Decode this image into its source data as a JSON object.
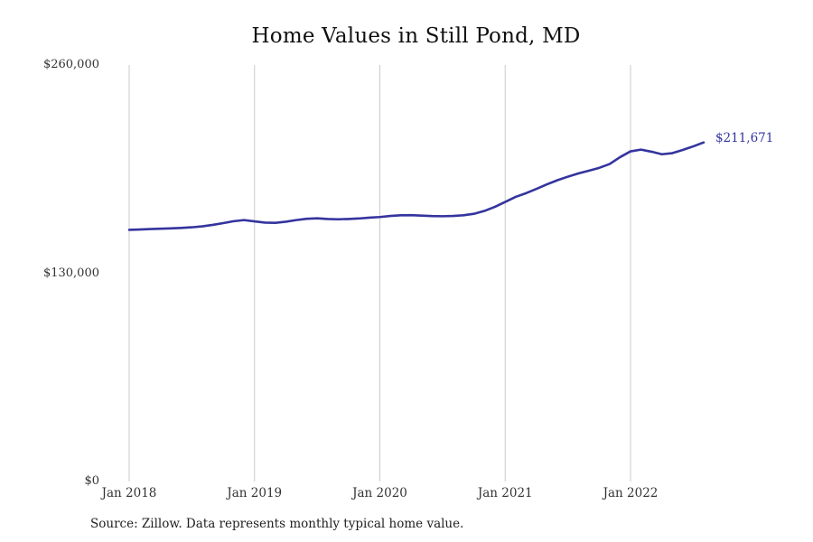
{
  "page": {
    "background": "#ffffff"
  },
  "chart_data": {
    "type": "line",
    "title": "Home Values in Still Pond, MD",
    "xlabel": "",
    "ylabel": "",
    "ylim": [
      0,
      260000
    ],
    "grid": "vertical-only",
    "legend": "none",
    "line_color": "#34349E",
    "grid_color": "#CBCBCB",
    "end_label_color": "#33339E",
    "tick_color": "#333333",
    "end_label": "$211,671",
    "latest_value": 211671,
    "source_note": "Source: Zillow. Data represents monthly typical home value.",
    "yticks": [
      {
        "label": "$0",
        "value": 0
      },
      {
        "label": "$130,000",
        "value": 130000
      },
      {
        "label": "$260,000",
        "value": 260000
      }
    ],
    "xticks": [
      {
        "label": "Jan 2018",
        "index": 0
      },
      {
        "label": "Jan 2019",
        "index": 12
      },
      {
        "label": "Jan 2020",
        "index": 24
      },
      {
        "label": "Jan 2021",
        "index": 36
      },
      {
        "label": "Jan 2022",
        "index": 48
      }
    ],
    "x": [
      "Jan 2018",
      "Feb 2018",
      "Mar 2018",
      "Apr 2018",
      "May 2018",
      "Jun 2018",
      "Jul 2018",
      "Aug 2018",
      "Sep 2018",
      "Oct 2018",
      "Nov 2018",
      "Dec 2018",
      "Jan 2019",
      "Feb 2019",
      "Mar 2019",
      "Apr 2019",
      "May 2019",
      "Jun 2019",
      "Jul 2019",
      "Aug 2019",
      "Sep 2019",
      "Oct 2019",
      "Nov 2019",
      "Dec 2019",
      "Jan 2020",
      "Feb 2020",
      "Mar 2020",
      "Apr 2020",
      "May 2020",
      "Jun 2020",
      "Jul 2020",
      "Aug 2020",
      "Sep 2020",
      "Oct 2020",
      "Nov 2020",
      "Dec 2020",
      "Jan 2021",
      "Feb 2021",
      "Mar 2021",
      "Apr 2021",
      "May 2021",
      "Jun 2021",
      "Jul 2021",
      "Aug 2021",
      "Sep 2021",
      "Oct 2021",
      "Nov 2021",
      "Dec 2021",
      "Jan 2022",
      "Feb 2022",
      "Mar 2022",
      "Apr 2022",
      "May 2022",
      "Jun 2022",
      "Jul 2022",
      "Aug 2022"
    ],
    "series": [
      {
        "name": "Monthly typical home value",
        "color": "#34349E",
        "values": [
          157100,
          157300,
          157600,
          157800,
          158000,
          158300,
          158700,
          159300,
          160200,
          161300,
          162500,
          163200,
          162400,
          161600,
          161500,
          162200,
          163200,
          164000,
          164300,
          163900,
          163700,
          163900,
          164200,
          164700,
          165100,
          165800,
          166200,
          166300,
          166000,
          165700,
          165600,
          165800,
          166200,
          167100,
          168900,
          171400,
          174500,
          177700,
          180000,
          182700,
          185500,
          188100,
          190300,
          192300,
          194000,
          195800,
          198200,
          202500,
          206100,
          207200,
          205900,
          204300,
          205000,
          207000,
          209200,
          211671
        ]
      }
    ]
  }
}
